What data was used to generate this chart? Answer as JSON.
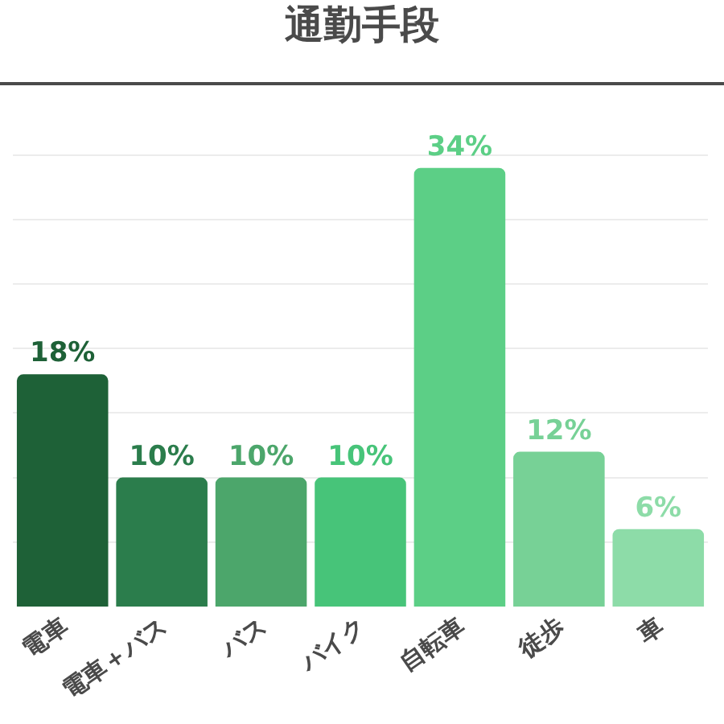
{
  "chart_data": {
    "type": "bar",
    "title": "通勤手段",
    "categories": [
      "電車",
      "電車＋バス",
      "バス",
      "バイク",
      "自転車",
      "徒歩",
      "車"
    ],
    "values": [
      18,
      10,
      10,
      10,
      34,
      12,
      6
    ],
    "value_labels": [
      "18%",
      "10%",
      "10%",
      "10%",
      "34%",
      "12%",
      "6%"
    ],
    "colors": [
      "#1e6137",
      "#2b7d4c",
      "#4ca66b",
      "#47c479",
      "#5ccf86",
      "#77d196",
      "#8ddca8"
    ],
    "grid": "y",
    "tick_labels": "x"
  }
}
